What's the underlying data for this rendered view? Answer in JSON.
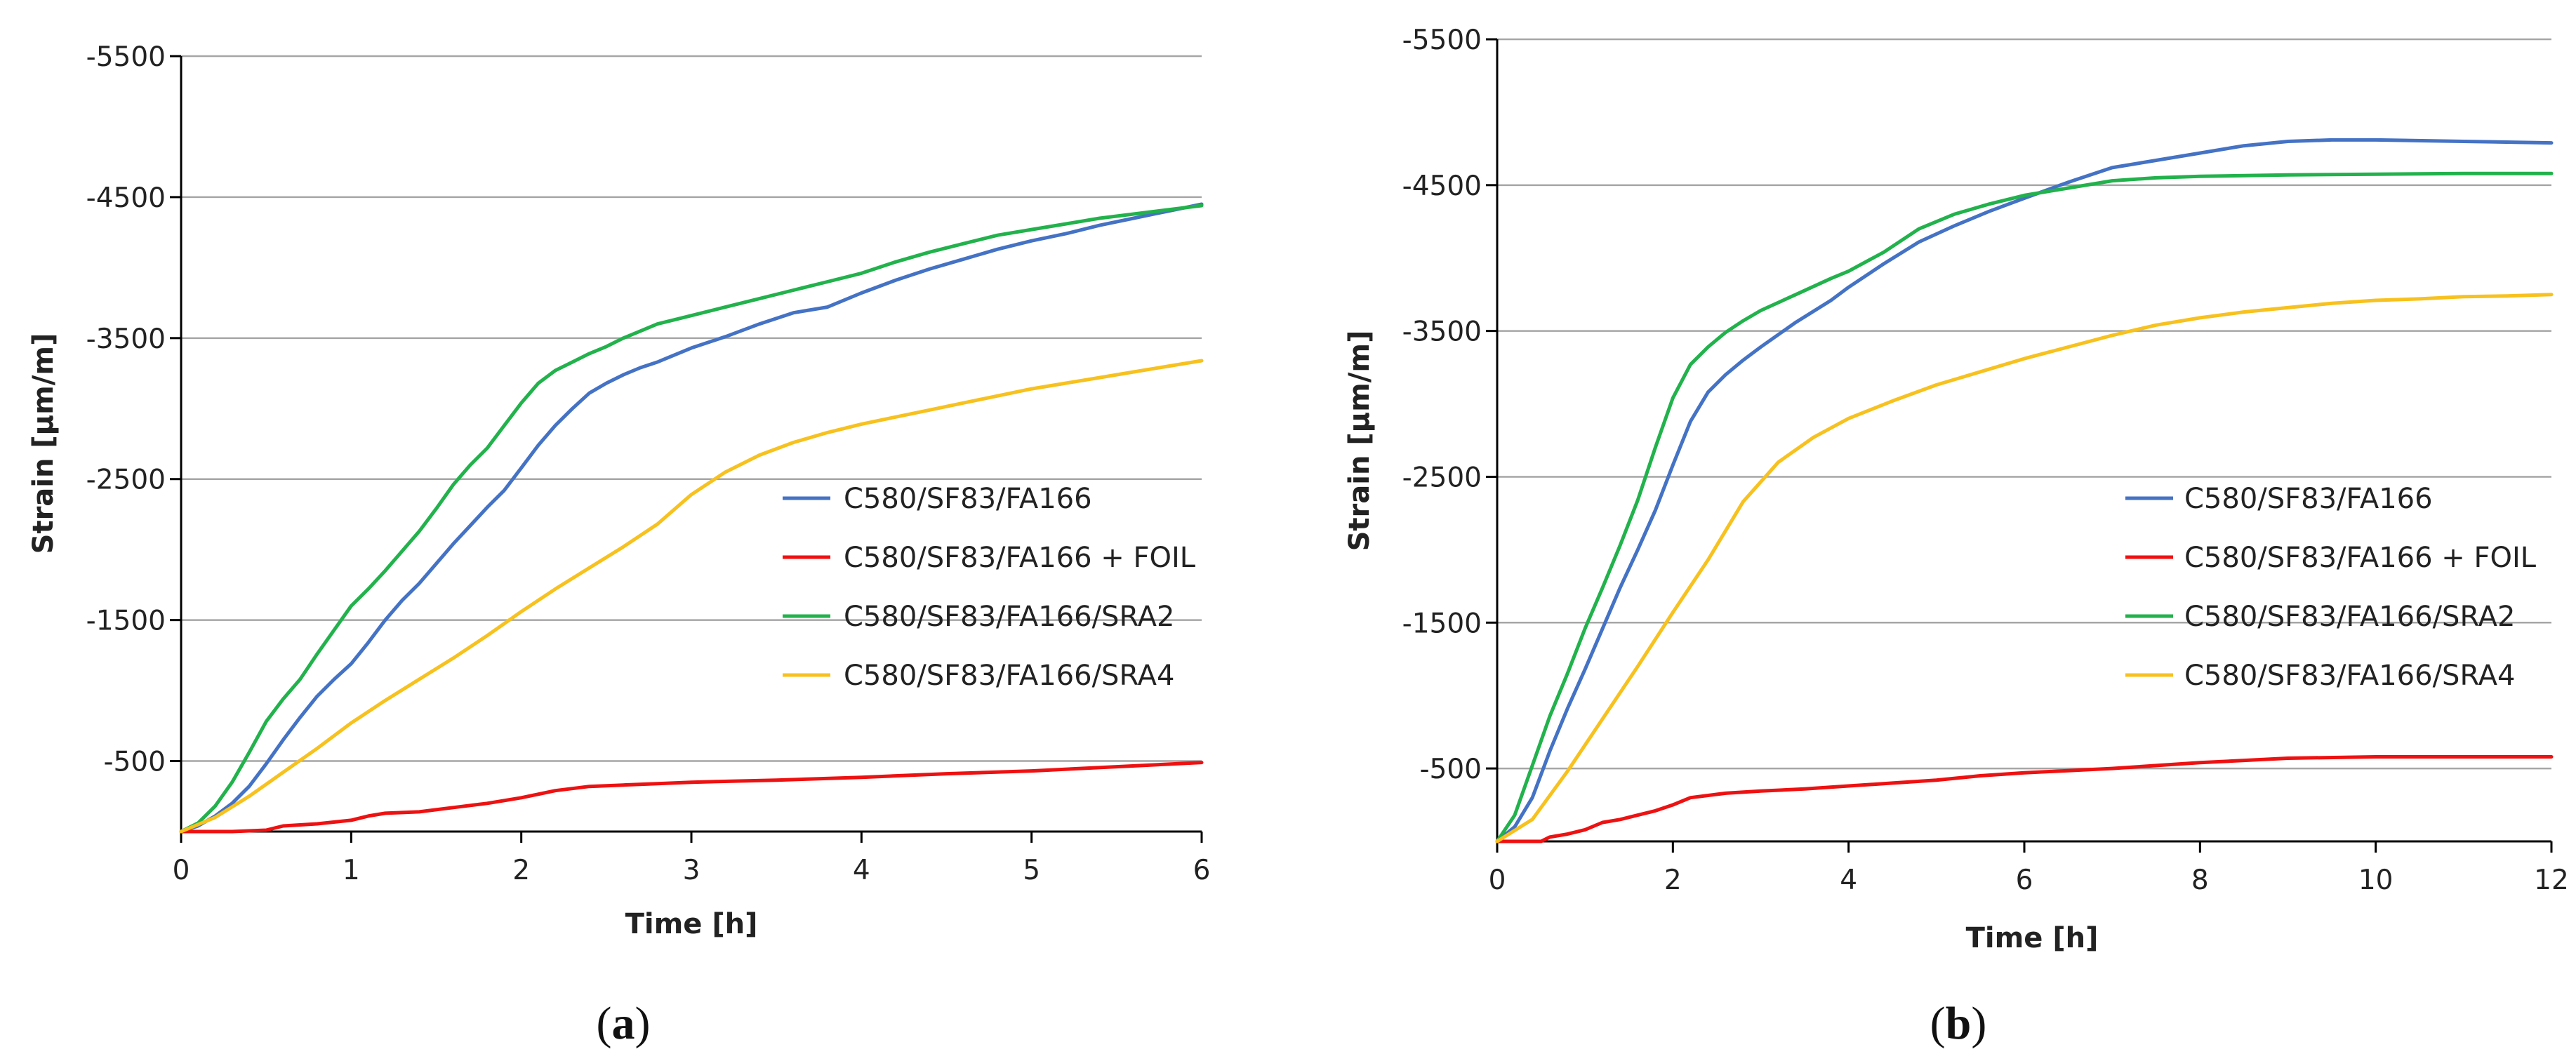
{
  "chart_data": [
    {
      "type": "line",
      "panel_label": "a",
      "xlabel": "Time [h]",
      "ylabel": "Strain [µm/m]",
      "xlim": [
        0,
        6
      ],
      "ylim": [
        0,
        -5500
      ],
      "x_ticks": [
        0,
        1,
        2,
        3,
        4,
        5,
        6
      ],
      "y_ticks": [
        -500,
        -1500,
        -2500,
        -3500,
        -4500,
        -5500
      ],
      "grid": "horizontal",
      "legend_position": "right",
      "series": [
        {
          "name": "C580/SF83/FA166",
          "color": "#4472C4",
          "points": [
            [
              0,
              0
            ],
            [
              0.1,
              -40
            ],
            [
              0.2,
              -110
            ],
            [
              0.3,
              -200
            ],
            [
              0.4,
              -320
            ],
            [
              0.5,
              -480
            ],
            [
              0.6,
              -650
            ],
            [
              0.7,
              -810
            ],
            [
              0.8,
              -960
            ],
            [
              0.9,
              -1080
            ],
            [
              1.0,
              -1190
            ],
            [
              1.1,
              -1340
            ],
            [
              1.2,
              -1500
            ],
            [
              1.3,
              -1640
            ],
            [
              1.4,
              -1760
            ],
            [
              1.5,
              -1900
            ],
            [
              1.6,
              -2040
            ],
            [
              1.7,
              -2170
            ],
            [
              1.8,
              -2300
            ],
            [
              1.9,
              -2420
            ],
            [
              2.0,
              -2580
            ],
            [
              2.1,
              -2740
            ],
            [
              2.2,
              -2880
            ],
            [
              2.3,
              -3000
            ],
            [
              2.4,
              -3110
            ],
            [
              2.5,
              -3180
            ],
            [
              2.6,
              -3240
            ],
            [
              2.7,
              -3290
            ],
            [
              2.8,
              -3330
            ],
            [
              2.9,
              -3380
            ],
            [
              3.0,
              -3430
            ],
            [
              3.2,
              -3510
            ],
            [
              3.4,
              -3600
            ],
            [
              3.6,
              -3680
            ],
            [
              3.8,
              -3720
            ],
            [
              4.0,
              -3820
            ],
            [
              4.2,
              -3910
            ],
            [
              4.4,
              -3990
            ],
            [
              4.6,
              -4060
            ],
            [
              4.8,
              -4130
            ],
            [
              5.0,
              -4190
            ],
            [
              5.2,
              -4240
            ],
            [
              5.4,
              -4300
            ],
            [
              5.6,
              -4350
            ],
            [
              5.8,
              -4400
            ],
            [
              6.0,
              -4450
            ]
          ]
        },
        {
          "name": "C580/SF83/FA166 + FOIL",
          "color": "#EE1111",
          "points": [
            [
              0,
              0
            ],
            [
              0.3,
              0
            ],
            [
              0.5,
              -10
            ],
            [
              0.6,
              -40
            ],
            [
              0.8,
              -55
            ],
            [
              1.0,
              -80
            ],
            [
              1.1,
              -110
            ],
            [
              1.2,
              -130
            ],
            [
              1.4,
              -140
            ],
            [
              1.6,
              -170
            ],
            [
              1.8,
              -200
            ],
            [
              2.0,
              -240
            ],
            [
              2.2,
              -290
            ],
            [
              2.4,
              -320
            ],
            [
              2.6,
              -330
            ],
            [
              2.8,
              -340
            ],
            [
              3.0,
              -350
            ],
            [
              3.5,
              -365
            ],
            [
              4.0,
              -385
            ],
            [
              4.5,
              -410
            ],
            [
              5.0,
              -430
            ],
            [
              5.5,
              -460
            ],
            [
              6.0,
              -490
            ]
          ]
        },
        {
          "name": "C580/SF83/FA166/SRA2",
          "color": "#22B24C",
          "points": [
            [
              0,
              0
            ],
            [
              0.1,
              -60
            ],
            [
              0.2,
              -180
            ],
            [
              0.3,
              -350
            ],
            [
              0.4,
              -560
            ],
            [
              0.5,
              -780
            ],
            [
              0.6,
              -940
            ],
            [
              0.7,
              -1080
            ],
            [
              0.8,
              -1260
            ],
            [
              0.9,
              -1430
            ],
            [
              1.0,
              -1600
            ],
            [
              1.1,
              -1720
            ],
            [
              1.2,
              -1850
            ],
            [
              1.3,
              -1990
            ],
            [
              1.4,
              -2130
            ],
            [
              1.5,
              -2290
            ],
            [
              1.6,
              -2460
            ],
            [
              1.7,
              -2600
            ],
            [
              1.8,
              -2720
            ],
            [
              1.9,
              -2880
            ],
            [
              2.0,
              -3040
            ],
            [
              2.1,
              -3180
            ],
            [
              2.2,
              -3270
            ],
            [
              2.3,
              -3330
            ],
            [
              2.4,
              -3390
            ],
            [
              2.5,
              -3440
            ],
            [
              2.6,
              -3500
            ],
            [
              2.7,
              -3550
            ],
            [
              2.8,
              -3600
            ],
            [
              2.9,
              -3630
            ],
            [
              3.0,
              -3660
            ],
            [
              3.2,
              -3720
            ],
            [
              3.4,
              -3780
            ],
            [
              3.6,
              -3840
            ],
            [
              3.8,
              -3900
            ],
            [
              4.0,
              -3960
            ],
            [
              4.2,
              -4040
            ],
            [
              4.4,
              -4110
            ],
            [
              4.6,
              -4170
            ],
            [
              4.8,
              -4230
            ],
            [
              5.0,
              -4270
            ],
            [
              5.2,
              -4310
            ],
            [
              5.4,
              -4350
            ],
            [
              5.6,
              -4380
            ],
            [
              5.8,
              -4410
            ],
            [
              6.0,
              -4440
            ]
          ]
        },
        {
          "name": "C580/SF83/FA166/SRA4",
          "color": "#F7C11E",
          "points": [
            [
              0,
              0
            ],
            [
              0.2,
              -100
            ],
            [
              0.4,
              -250
            ],
            [
              0.6,
              -420
            ],
            [
              0.8,
              -590
            ],
            [
              1.0,
              -770
            ],
            [
              1.2,
              -930
            ],
            [
              1.4,
              -1080
            ],
            [
              1.6,
              -1230
            ],
            [
              1.8,
              -1390
            ],
            [
              2.0,
              -1560
            ],
            [
              2.2,
              -1720
            ],
            [
              2.4,
              -1870
            ],
            [
              2.6,
              -2020
            ],
            [
              2.8,
              -2180
            ],
            [
              3.0,
              -2390
            ],
            [
              3.2,
              -2550
            ],
            [
              3.4,
              -2670
            ],
            [
              3.6,
              -2760
            ],
            [
              3.8,
              -2830
            ],
            [
              4.0,
              -2890
            ],
            [
              4.2,
              -2940
            ],
            [
              4.4,
              -2990
            ],
            [
              4.6,
              -3040
            ],
            [
              4.8,
              -3090
            ],
            [
              5.0,
              -3140
            ],
            [
              5.2,
              -3180
            ],
            [
              5.4,
              -3220
            ],
            [
              5.6,
              -3260
            ],
            [
              5.8,
              -3300
            ],
            [
              6.0,
              -3340
            ]
          ]
        }
      ]
    },
    {
      "type": "line",
      "panel_label": "b",
      "xlabel": "Time [h]",
      "ylabel": "Strain [µm/m]",
      "xlim": [
        0,
        12
      ],
      "ylim": [
        0,
        -5500
      ],
      "x_ticks": [
        0,
        2,
        4,
        6,
        8,
        10,
        12
      ],
      "y_ticks": [
        -500,
        -1500,
        -2500,
        -3500,
        -4500,
        -5500
      ],
      "grid": "horizontal",
      "legend_position": "right",
      "series": [
        {
          "name": "C580/SF83/FA166",
          "color": "#4472C4",
          "points": [
            [
              0,
              0
            ],
            [
              0.2,
              -100
            ],
            [
              0.4,
              -300
            ],
            [
              0.6,
              -620
            ],
            [
              0.8,
              -910
            ],
            [
              1.0,
              -1180
            ],
            [
              1.2,
              -1460
            ],
            [
              1.4,
              -1740
            ],
            [
              1.6,
              -2000
            ],
            [
              1.8,
              -2270
            ],
            [
              2.0,
              -2580
            ],
            [
              2.2,
              -2880
            ],
            [
              2.4,
              -3080
            ],
            [
              2.6,
              -3200
            ],
            [
              2.8,
              -3300
            ],
            [
              3.0,
              -3390
            ],
            [
              3.4,
              -3560
            ],
            [
              3.8,
              -3710
            ],
            [
              4.0,
              -3800
            ],
            [
              4.4,
              -3960
            ],
            [
              4.8,
              -4110
            ],
            [
              5.2,
              -4220
            ],
            [
              5.6,
              -4320
            ],
            [
              6.0,
              -4410
            ],
            [
              6.5,
              -4520
            ],
            [
              7.0,
              -4620
            ],
            [
              7.5,
              -4670
            ],
            [
              8.0,
              -4720
            ],
            [
              8.5,
              -4770
            ],
            [
              9.0,
              -4800
            ],
            [
              9.5,
              -4810
            ],
            [
              10.0,
              -4810
            ],
            [
              11.0,
              -4800
            ],
            [
              12.0,
              -4790
            ]
          ]
        },
        {
          "name": "C580/SF83/FA166 + FOIL",
          "color": "#EE1111",
          "points": [
            [
              0,
              0
            ],
            [
              0.5,
              0
            ],
            [
              0.6,
              -30
            ],
            [
              0.8,
              -50
            ],
            [
              1.0,
              -80
            ],
            [
              1.2,
              -130
            ],
            [
              1.4,
              -150
            ],
            [
              1.6,
              -180
            ],
            [
              1.8,
              -210
            ],
            [
              2.0,
              -250
            ],
            [
              2.2,
              -300
            ],
            [
              2.6,
              -330
            ],
            [
              3.0,
              -345
            ],
            [
              3.5,
              -360
            ],
            [
              4.0,
              -380
            ],
            [
              4.5,
              -400
            ],
            [
              5.0,
              -420
            ],
            [
              5.5,
              -450
            ],
            [
              6.0,
              -470
            ],
            [
              7.0,
              -500
            ],
            [
              8.0,
              -540
            ],
            [
              9.0,
              -570
            ],
            [
              10.0,
              -580
            ],
            [
              11.0,
              -580
            ],
            [
              12.0,
              -580
            ]
          ]
        },
        {
          "name": "C580/SF83/FA166/SRA2",
          "color": "#22B24C",
          "points": [
            [
              0,
              0
            ],
            [
              0.2,
              -180
            ],
            [
              0.4,
              -520
            ],
            [
              0.6,
              -860
            ],
            [
              0.8,
              -1150
            ],
            [
              1.0,
              -1460
            ],
            [
              1.2,
              -1740
            ],
            [
              1.4,
              -2030
            ],
            [
              1.6,
              -2340
            ],
            [
              1.8,
              -2700
            ],
            [
              2.0,
              -3040
            ],
            [
              2.2,
              -3270
            ],
            [
              2.4,
              -3390
            ],
            [
              2.6,
              -3490
            ],
            [
              2.8,
              -3570
            ],
            [
              3.0,
              -3640
            ],
            [
              3.4,
              -3750
            ],
            [
              3.8,
              -3860
            ],
            [
              4.0,
              -3910
            ],
            [
              4.4,
              -4040
            ],
            [
              4.8,
              -4200
            ],
            [
              5.2,
              -4300
            ],
            [
              5.6,
              -4370
            ],
            [
              6.0,
              -4430
            ],
            [
              6.5,
              -4480
            ],
            [
              7.0,
              -4530
            ],
            [
              7.5,
              -4550
            ],
            [
              8.0,
              -4560
            ],
            [
              9.0,
              -4570
            ],
            [
              10.0,
              -4575
            ],
            [
              11.0,
              -4580
            ],
            [
              12.0,
              -4580
            ]
          ]
        },
        {
          "name": "C580/SF83/FA166/SRA4",
          "color": "#F7C11E",
          "points": [
            [
              0,
              0
            ],
            [
              0.4,
              -150
            ],
            [
              0.8,
              -480
            ],
            [
              1.2,
              -840
            ],
            [
              1.6,
              -1200
            ],
            [
              2.0,
              -1570
            ],
            [
              2.4,
              -1930
            ],
            [
              2.8,
              -2330
            ],
            [
              3.2,
              -2600
            ],
            [
              3.6,
              -2770
            ],
            [
              4.0,
              -2900
            ],
            [
              4.5,
              -3020
            ],
            [
              5.0,
              -3130
            ],
            [
              5.5,
              -3220
            ],
            [
              6.0,
              -3310
            ],
            [
              6.5,
              -3390
            ],
            [
              7.0,
              -3470
            ],
            [
              7.5,
              -3540
            ],
            [
              8.0,
              -3590
            ],
            [
              8.5,
              -3630
            ],
            [
              9.0,
              -3660
            ],
            [
              9.5,
              -3690
            ],
            [
              10.0,
              -3710
            ],
            [
              10.5,
              -3720
            ],
            [
              11.0,
              -3735
            ],
            [
              11.5,
              -3740
            ],
            [
              12.0,
              -3750
            ]
          ]
        }
      ]
    }
  ]
}
